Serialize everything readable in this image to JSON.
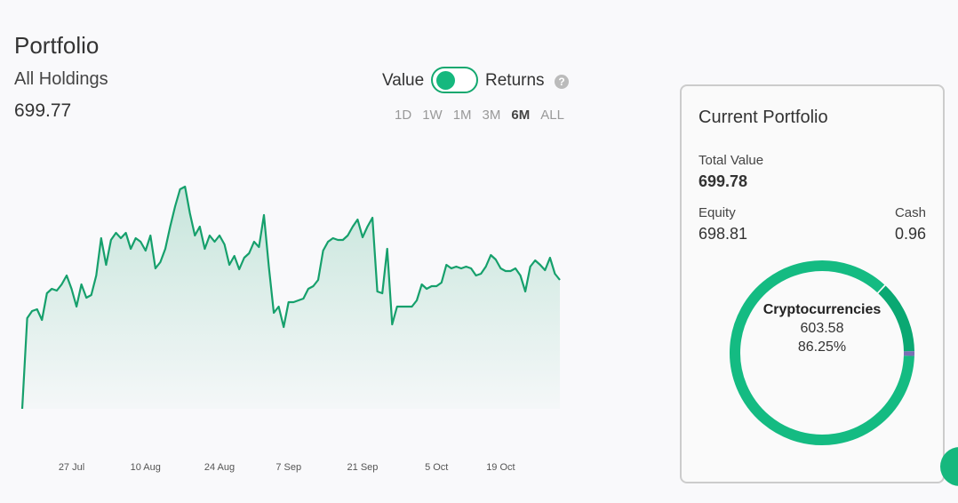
{
  "header": {
    "title": "Portfolio",
    "subtitle": "All Holdings",
    "value": "699.77"
  },
  "toggle": {
    "left": "Value",
    "right": "Returns",
    "help": "?"
  },
  "ranges": [
    "1D",
    "1W",
    "1M",
    "3M",
    "6M",
    "ALL"
  ],
  "active_range": 4,
  "chart_data": {
    "type": "line",
    "categories": [
      null,
      null,
      null,
      null,
      null,
      null,
      null,
      null,
      null,
      null,
      "27 Jul",
      null,
      null,
      null,
      null,
      null,
      null,
      null,
      null,
      null,
      null,
      null,
      null,
      null,
      null,
      "10 Aug",
      null,
      null,
      null,
      null,
      null,
      null,
      null,
      null,
      null,
      null,
      null,
      null,
      null,
      null,
      "24 Aug",
      null,
      null,
      null,
      null,
      null,
      null,
      null,
      null,
      null,
      null,
      null,
      null,
      null,
      "7 Sep",
      null,
      null,
      null,
      null,
      null,
      null,
      null,
      null,
      null,
      null,
      null,
      null,
      null,
      null,
      "21 Sep",
      null,
      null,
      null,
      null,
      null,
      null,
      null,
      null,
      null,
      null,
      null,
      null,
      null,
      null,
      "5 Oct",
      null,
      null,
      null,
      null,
      null,
      null,
      null,
      null,
      null,
      null,
      null,
      null,
      "19 Oct",
      null,
      null,
      null,
      null,
      null,
      null,
      null,
      null,
      null,
      null,
      null,
      null
    ],
    "values": [
      550,
      652,
      660,
      662,
      650,
      680,
      685,
      683,
      690,
      700,
      685,
      665,
      690,
      675,
      678,
      700,
      742,
      712,
      740,
      748,
      742,
      748,
      730,
      742,
      738,
      728,
      745,
      708,
      715,
      730,
      755,
      778,
      797,
      800,
      770,
      745,
      755,
      730,
      745,
      738,
      745,
      735,
      712,
      722,
      707,
      720,
      725,
      738,
      732,
      768,
      710,
      658,
      665,
      642,
      670,
      670,
      672,
      674,
      685,
      688,
      695,
      728,
      738,
      742,
      740,
      740,
      745,
      755,
      763,
      743,
      755,
      765,
      682,
      680,
      730,
      645,
      665,
      665,
      665,
      665,
      672,
      690,
      685,
      688,
      688,
      692,
      712,
      708,
      710,
      708,
      710,
      708,
      700,
      702,
      710,
      723,
      718,
      708,
      705,
      705,
      708,
      700,
      682,
      710,
      717,
      712,
      706,
      720,
      702,
      695
    ],
    "color": "#16a06c",
    "ylim": [
      540,
      820
    ]
  },
  "card": {
    "title": "Current Portfolio",
    "total_label": "Total Value",
    "total": "699.78",
    "equity_label": "Equity",
    "equity": "698.81",
    "cash_label": "Cash",
    "cash": "0.96",
    "donut": {
      "label": "Cryptocurrencies",
      "amount": "603.58",
      "values": [
        86.25
      ],
      "value_labels": [
        "86.25%"
      ],
      "color": "#14bb82"
    }
  }
}
